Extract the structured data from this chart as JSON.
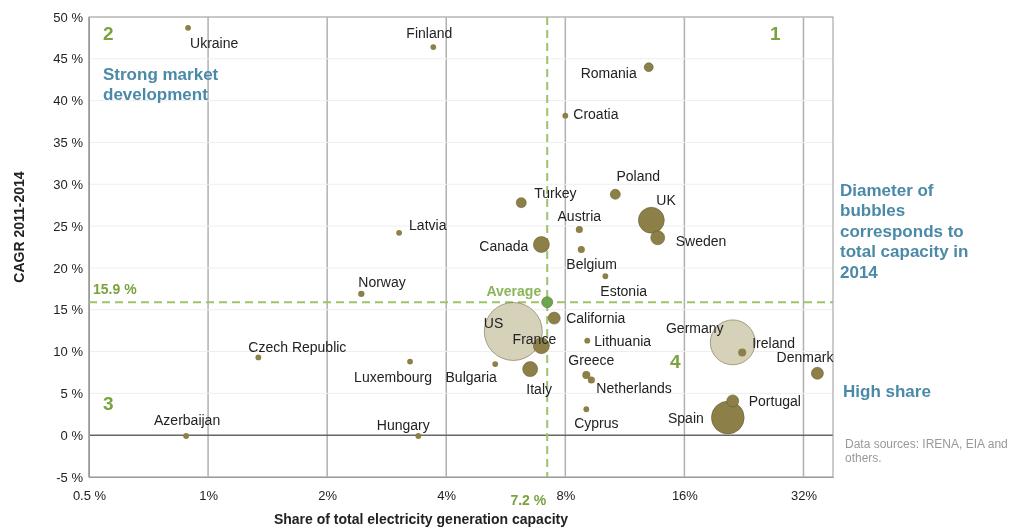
{
  "chart_data": {
    "type": "bubble",
    "xlabel": "Share of total electricity generation capacity",
    "ylabel": "CAGR 2011-2014",
    "log": "x",
    "grid": true,
    "xlim": [
      0.5,
      38
    ],
    "ylim": [
      -5,
      50
    ],
    "xticks": [
      {
        "value": 0.5,
        "label": "0.5 %"
      },
      {
        "value": 1,
        "label": "1%"
      },
      {
        "value": 2,
        "label": "2%"
      },
      {
        "value": 4,
        "label": "4%"
      },
      {
        "value": 8,
        "label": "8%"
      },
      {
        "value": 16,
        "label": "16%"
      },
      {
        "value": 32,
        "label": "32%"
      }
    ],
    "yticks": [
      {
        "value": -5,
        "label": "-5 %"
      },
      {
        "value": 0,
        "label": "0 %"
      },
      {
        "value": 5,
        "label": "5 %"
      },
      {
        "value": 10,
        "label": "10 %"
      },
      {
        "value": 15,
        "label": "15 %"
      },
      {
        "value": 20,
        "label": "20 %"
      },
      {
        "value": 25,
        "label": "25 %"
      },
      {
        "value": 30,
        "label": "30 %"
      },
      {
        "value": 35,
        "label": "35 %"
      },
      {
        "value": 40,
        "label": "40 %"
      },
      {
        "value": 45,
        "label": "45 %"
      },
      {
        "value": 50,
        "label": "50 %"
      }
    ],
    "x": [
      5.91,
      21.2,
      20.6,
      13.2,
      6.96,
      6.96,
      6.52,
      13.7,
      21.2,
      34.7,
      7.5,
      7.2,
      10.7,
      6.19,
      13.0,
      9.04,
      22.4,
      8.68,
      8.78,
      9.31,
      2.44,
      3.71,
      0.89,
      5.32,
      1.34,
      3.4,
      8.0,
      3.04,
      9.09,
      10.1,
      3.24,
      9.04,
      0.88
    ],
    "values": [
      12.4,
      11.1,
      2.1,
      25.7,
      22.8,
      10.7,
      7.9,
      23.6,
      4.1,
      7.4,
      14.0,
      15.9,
      28.8,
      27.8,
      44.0,
      7.2,
      9.9,
      24.6,
      22.2,
      6.6,
      16.9,
      46.4,
      48.7,
      8.5,
      9.3,
      -0.1,
      38.2,
      24.2,
      11.3,
      19.0,
      8.8,
      3.1,
      -0.1
    ],
    "sizes": [
      1,
      0.6,
      0.32,
      0.2,
      0.076,
      0.076,
      0.067,
      0.058,
      0.043,
      0.043,
      0.043,
      0.036,
      0.03,
      0.03,
      0.024,
      0.019,
      0.019,
      0.015,
      0.015,
      0.015,
      0.012,
      0.01,
      0.01,
      0.01,
      0.01,
      0.01,
      0.01,
      0.01,
      0.01,
      0.01,
      0.01,
      0.01,
      0.01
    ],
    "colors": [
      "#d2cdb2",
      "#d2cdb2",
      "#8c8048",
      "#8c8048",
      "#8c8048",
      "#8c8048",
      "#8c8048",
      "#8c8048",
      "#8c8048",
      "#8c8048",
      "#8c8048",
      "#6aa84f",
      "#8c8048",
      "#8c8048",
      "#8c8048",
      "#8c8048",
      "#8c8048",
      "#8c8048",
      "#8c8048",
      "#8c8048",
      "#8c8048",
      "#8c8048",
      "#8c8048",
      "#8c8048",
      "#8c8048",
      "#8c8048",
      "#8c8048",
      "#8c8048",
      "#8c8048",
      "#8c8048",
      "#8c8048",
      "#8c8048",
      "#8c8048"
    ],
    "ref_lines": [
      {
        "axis": "y",
        "value": 15.9,
        "label": "15.9 %",
        "color": "#9dc36b",
        "line_style": "dashed"
      },
      {
        "axis": "x",
        "value": 7.2,
        "label": "7.2 %",
        "color": "#9dc36b",
        "line_style": "dashed"
      }
    ],
    "annotations": [
      {
        "text": "US",
        "x": 5.91,
        "y": 12.4
      },
      {
        "text": "Germany",
        "x": 21.2,
        "y": 11.1
      },
      {
        "text": "Spain",
        "x": 20.6,
        "y": 2.1
      },
      {
        "text": "UK",
        "x": 13.2,
        "y": 25.7
      },
      {
        "text": "Canada",
        "x": 6.96,
        "y": 22.8
      },
      {
        "text": "France",
        "x": 6.96,
        "y": 10.7
      },
      {
        "text": "Italy",
        "x": 6.52,
        "y": 7.9
      },
      {
        "text": "Sweden",
        "x": 13.7,
        "y": 23.6
      },
      {
        "text": "Portugal",
        "x": 21.2,
        "y": 4.1
      },
      {
        "text": "Denmark",
        "x": 34.7,
        "y": 7.4
      },
      {
        "text": "California",
        "x": 7.5,
        "y": 14.0
      },
      {
        "text": "Average",
        "x": 7.2,
        "y": 15.9
      },
      {
        "text": "Poland",
        "x": 10.7,
        "y": 28.8
      },
      {
        "text": "Turkey",
        "x": 6.19,
        "y": 27.8
      },
      {
        "text": "Romania",
        "x": 13.0,
        "y": 44.0
      },
      {
        "text": "Greece",
        "x": 9.04,
        "y": 7.2
      },
      {
        "text": "Ireland",
        "x": 22.4,
        "y": 9.9
      },
      {
        "text": "Austria",
        "x": 8.68,
        "y": 24.6
      },
      {
        "text": "Belgium",
        "x": 8.78,
        "y": 22.2
      },
      {
        "text": "Netherlands",
        "x": 9.31,
        "y": 6.6
      },
      {
        "text": "Norway",
        "x": 2.44,
        "y": 16.9
      },
      {
        "text": "Finland",
        "x": 3.71,
        "y": 46.4
      },
      {
        "text": "Ukraine",
        "x": 0.89,
        "y": 48.7
      },
      {
        "text": "Bulgaria",
        "x": 5.32,
        "y": 8.5
      },
      {
        "text": "Czech Republic",
        "x": 1.34,
        "y": 9.3
      },
      {
        "text": "Hungary",
        "x": 3.4,
        "y": -0.1
      },
      {
        "text": "Croatia",
        "x": 8.0,
        "y": 38.2
      },
      {
        "text": "Latvia",
        "x": 3.04,
        "y": 24.2
      },
      {
        "text": "Lithuania",
        "x": 9.09,
        "y": 11.3
      },
      {
        "text": "Estonia",
        "x": 10.1,
        "y": 19.0
      },
      {
        "text": "Luxembourg",
        "x": 3.24,
        "y": 8.8
      },
      {
        "text": "Cyprus",
        "x": 9.04,
        "y": 3.1
      },
      {
        "text": "Azerbaijan",
        "x": 0.88,
        "y": -0.1
      },
      "1",
      "2",
      "3",
      "4",
      "Strong market development",
      "High share",
      "Diameter of bubbles corresponds to total capacity in 2014",
      "Data sources: IRENA, EIA and others."
    ]
  }
}
